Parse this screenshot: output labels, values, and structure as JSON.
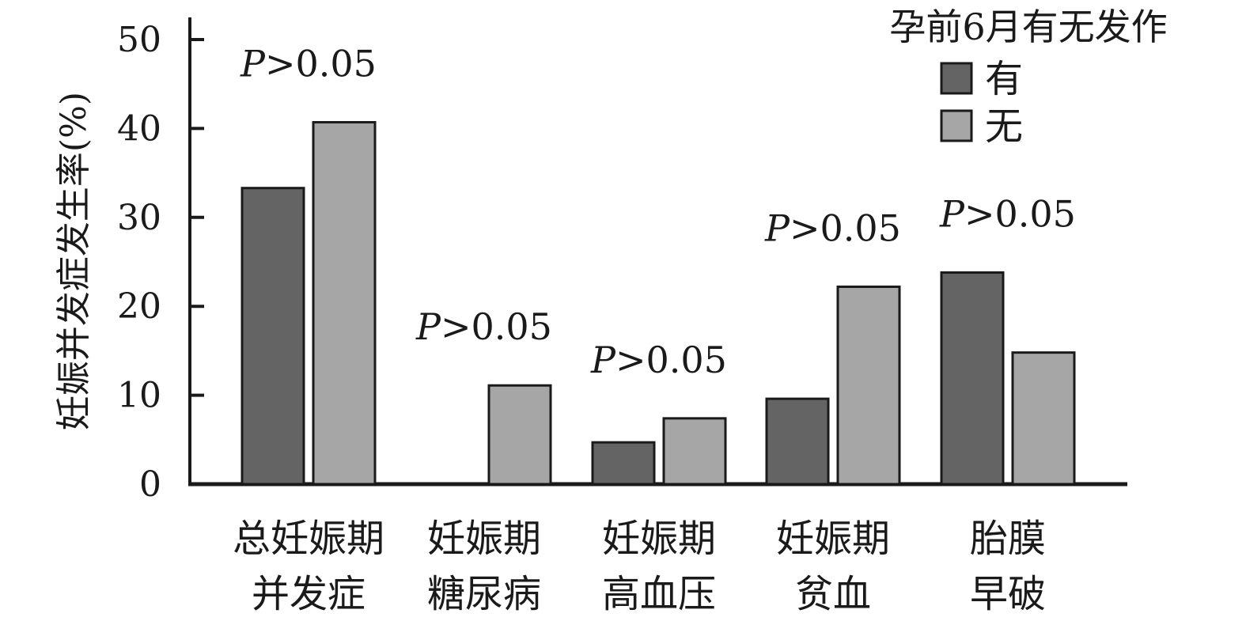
{
  "chart_data": {
    "type": "bar",
    "title": "",
    "ylabel": "妊娠并发症发生率(%)",
    "xlabel": "",
    "ylim": [
      0,
      50
    ],
    "yticks": [
      0,
      10,
      20,
      30,
      40,
      50
    ],
    "categories": [
      [
        "总妊娠期",
        "并发症"
      ],
      [
        "妊娠期",
        "糖尿病"
      ],
      [
        "妊娠期",
        "高血压"
      ],
      [
        "妊娠期",
        "贫血"
      ],
      [
        "胎膜",
        "早破"
      ]
    ],
    "legend": {
      "title": "孕前6月有无发作",
      "position": "top-right"
    },
    "series": [
      {
        "name": "有",
        "color": "#646464",
        "values": [
          33.3,
          0,
          4.7,
          9.6,
          23.8
        ]
      },
      {
        "name": "无",
        "color": "#a6a6a6",
        "values": [
          40.7,
          11.1,
          7.4,
          22.2,
          14.8
        ]
      }
    ],
    "annotations": [
      {
        "category_index": 0,
        "p_symbol": "P",
        "text": ">0.05"
      },
      {
        "category_index": 1,
        "p_symbol": "P",
        "text": ">0.05"
      },
      {
        "category_index": 2,
        "p_symbol": "P",
        "text": ">0.05"
      },
      {
        "category_index": 3,
        "p_symbol": "P",
        "text": ">0.05"
      },
      {
        "category_index": 4,
        "p_symbol": "P",
        "text": ">0.05"
      }
    ],
    "grid": false
  }
}
